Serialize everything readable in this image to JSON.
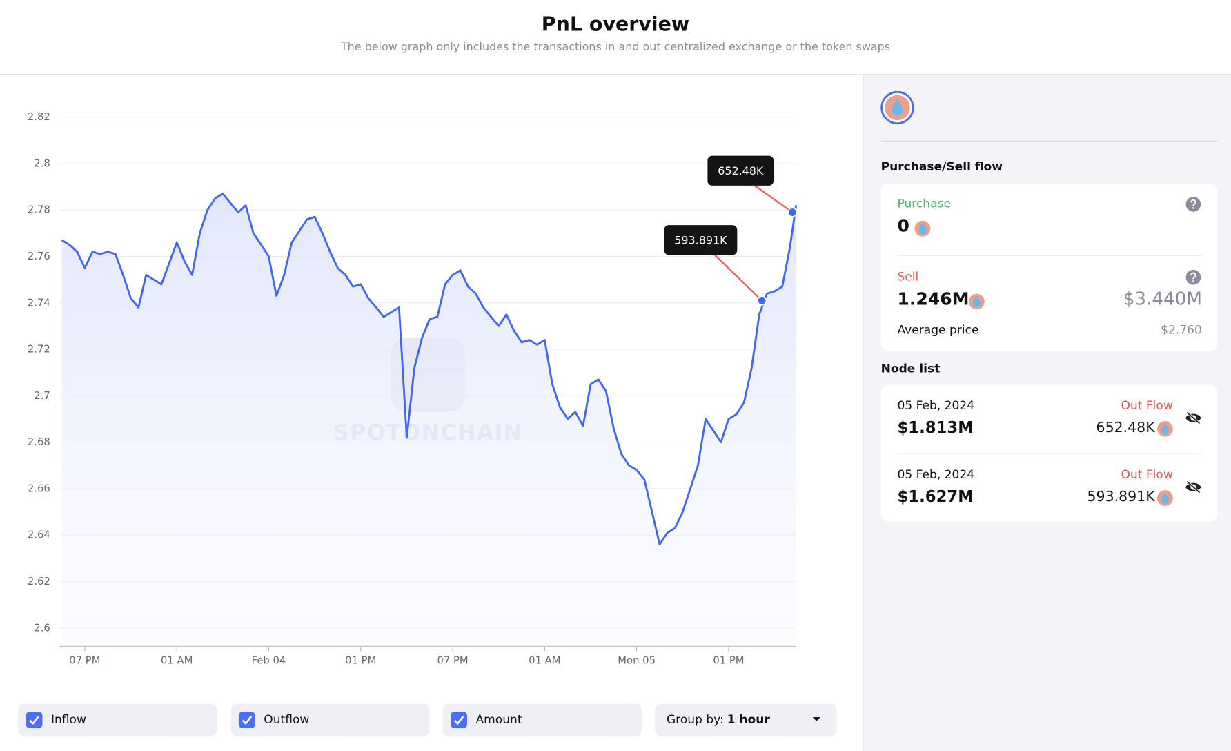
{
  "header": {
    "title": "PnL overview",
    "subtitle": "The below graph only includes the transactions in and out centralized exchange or the token swaps"
  },
  "chart_data": {
    "type": "line",
    "color": "#4166f5",
    "grid": true,
    "x": [
      17.5,
      18,
      18.5,
      19,
      19.5,
      20,
      20.5,
      21,
      21.5,
      22,
      22.5,
      23,
      23.5,
      24,
      24.5,
      25,
      25.5,
      26,
      26.5,
      27,
      27.5,
      28,
      28.5,
      29,
      29.5,
      30,
      30.5,
      31,
      31.5,
      32,
      32.5,
      33,
      33.5,
      34,
      34.5,
      35,
      35.5,
      36,
      36.5,
      37,
      37.5,
      38,
      38.5,
      39,
      39.5,
      40,
      40.5,
      41,
      41.5,
      42,
      42.5,
      43,
      43.5,
      44,
      44.5,
      45,
      45.5,
      46,
      46.5,
      47,
      47.5,
      48,
      48.5,
      49,
      49.5,
      50,
      50.5,
      51,
      51.5,
      52,
      52.5,
      53,
      53.5,
      54,
      54.5,
      55,
      55.5,
      56,
      56.5,
      57,
      57.5,
      58,
      58.5,
      59,
      59.5,
      60,
      60.5,
      61,
      61.5,
      62,
      62.5,
      63,
      63.5,
      64,
      64.5,
      65,
      65.4
    ],
    "values": [
      2.767,
      2.765,
      2.762,
      2.755,
      2.762,
      2.761,
      2.762,
      2.761,
      2.752,
      2.742,
      2.738,
      2.752,
      2.75,
      2.748,
      2.757,
      2.766,
      2.758,
      2.752,
      2.77,
      2.78,
      2.785,
      2.787,
      2.783,
      2.779,
      2.782,
      2.77,
      2.765,
      2.76,
      2.743,
      2.752,
      2.766,
      2.771,
      2.776,
      2.777,
      2.77,
      2.762,
      2.755,
      2.752,
      2.747,
      2.748,
      2.742,
      2.738,
      2.734,
      2.736,
      2.738,
      2.682,
      2.712,
      2.725,
      2.733,
      2.734,
      2.748,
      2.752,
      2.754,
      2.747,
      2.744,
      2.738,
      2.734,
      2.73,
      2.735,
      2.728,
      2.723,
      2.724,
      2.722,
      2.724,
      2.705,
      2.695,
      2.69,
      2.693,
      2.687,
      2.705,
      2.707,
      2.702,
      2.686,
      2.675,
      2.67,
      2.668,
      2.664,
      2.65,
      2.636,
      2.641,
      2.643,
      2.65,
      2.66,
      2.67,
      2.69,
      2.685,
      2.68,
      2.69,
      2.692,
      2.697,
      2.712,
      2.735,
      2.744,
      2.745,
      2.747,
      2.764,
      2.782
    ],
    "xlim": [
      17.36,
      65.4
    ],
    "ylim": [
      2.592,
      2.826
    ],
    "yticks": [
      2.6,
      2.62,
      2.64,
      2.66,
      2.68,
      2.7,
      2.72,
      2.74,
      2.76,
      2.78,
      2.8,
      2.82
    ],
    "xticks": [
      {
        "value": 19,
        "label": "07 PM"
      },
      {
        "value": 25,
        "label": "01 AM"
      },
      {
        "value": 31,
        "label": "Feb 04"
      },
      {
        "value": 37,
        "label": "01 PM"
      },
      {
        "value": 43,
        "label": "07 PM"
      },
      {
        "value": 49,
        "label": "01 AM"
      },
      {
        "value": 55,
        "label": "Mon 05"
      },
      {
        "value": 61,
        "label": "01 PM"
      }
    ],
    "annotations": [
      {
        "x": 65.16,
        "y": 2.779,
        "label": "652.48K"
      },
      {
        "x": 63.17,
        "y": 2.741,
        "label": "593.891K"
      }
    ],
    "watermark": "SPOTONCHAIN"
  },
  "controls": {
    "checkboxes": [
      "Inflow",
      "Outflow",
      "Amount"
    ],
    "group_by_label": "Group by:",
    "group_by_value": "1 hour"
  },
  "side": {
    "flow_title": "Purchase/Sell flow",
    "purchase": {
      "label": "Purchase",
      "value": "0"
    },
    "sell": {
      "label": "Sell",
      "value": "1.246M",
      "usd": "$3.440M",
      "avg_label": "Average price",
      "avg_value": "$2.760"
    },
    "node_title": "Node list",
    "nodes": [
      {
        "date": "05 Feb, 2024",
        "value": "$1.813M",
        "flow": "Out Flow",
        "amount": "652.48K"
      },
      {
        "date": "05 Feb, 2024",
        "value": "$1.627M",
        "flow": "Out Flow",
        "amount": "593.891K"
      }
    ]
  }
}
